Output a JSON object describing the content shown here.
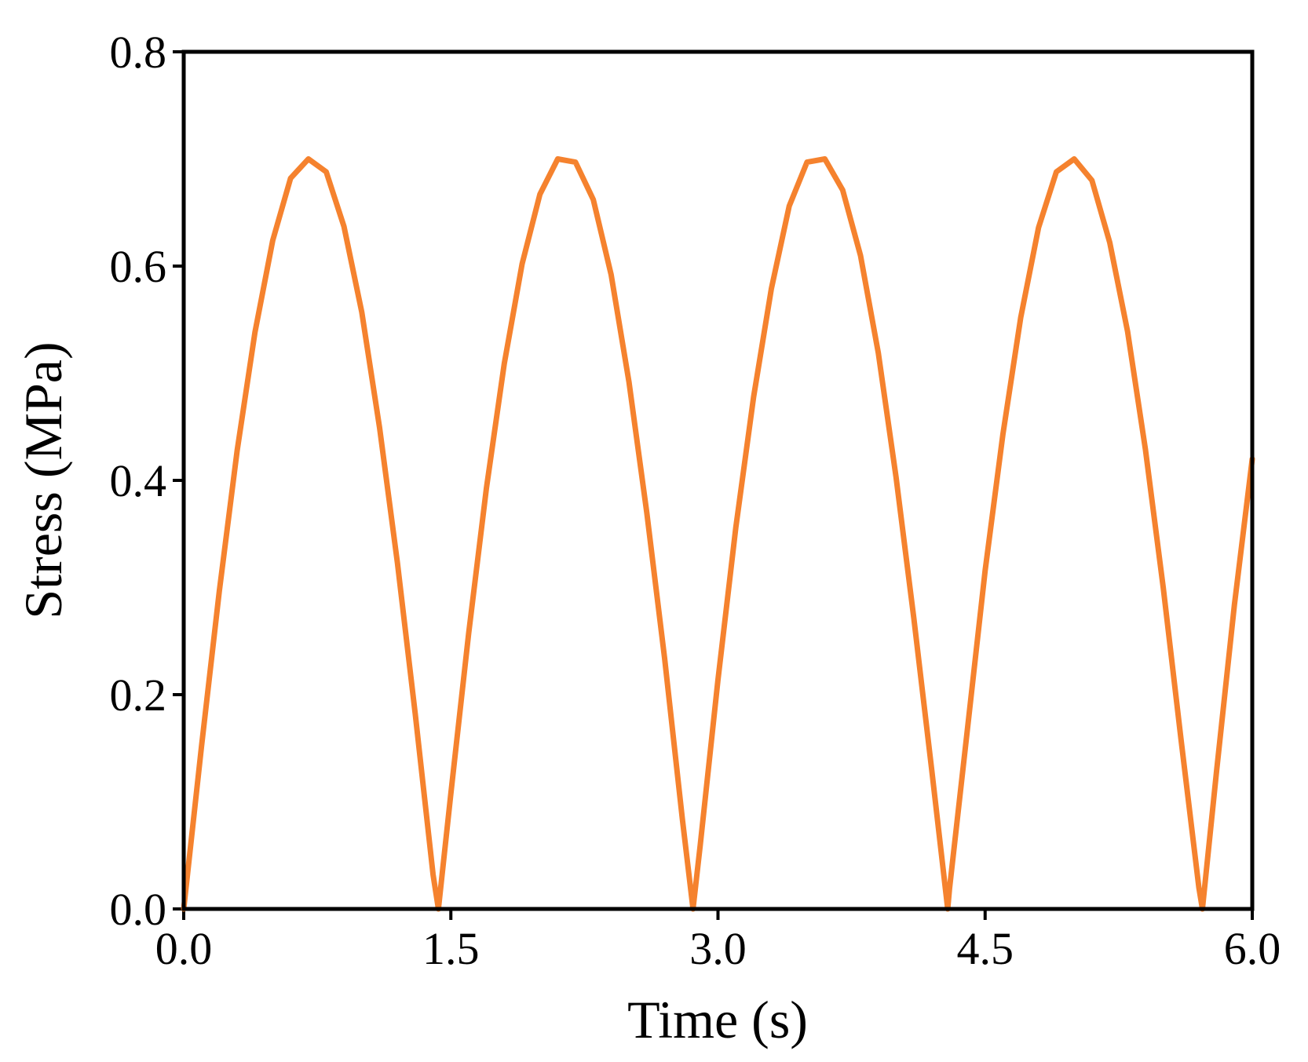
{
  "chart_data": {
    "type": "line",
    "title": "",
    "xlabel": "Time (s)",
    "ylabel": "Stress (MPa)",
    "xlim": [
      0.0,
      6.0
    ],
    "ylim": [
      0.0,
      0.8
    ],
    "xticks": [
      "0.0",
      "1.5",
      "3.0",
      "4.5",
      "6.0"
    ],
    "yticks": [
      "0.0",
      "0.2",
      "0.4",
      "0.6",
      "0.8"
    ],
    "grid": false,
    "legend": "none",
    "series": [
      {
        "color": "#f5822e",
        "x": [
          0.0,
          0.1,
          0.2,
          0.3,
          0.4,
          0.5,
          0.6,
          0.7,
          0.8,
          0.9,
          1.0,
          1.1,
          1.2,
          1.3,
          1.4,
          1.43,
          1.5,
          1.6,
          1.7,
          1.8,
          1.9,
          2.0,
          2.1,
          2.2,
          2.3,
          2.4,
          2.5,
          2.6,
          2.7,
          2.8,
          2.86,
          2.9,
          3.0,
          3.1,
          3.2,
          3.3,
          3.4,
          3.5,
          3.6,
          3.7,
          3.8,
          3.9,
          4.0,
          4.1,
          4.2,
          4.29,
          4.3,
          4.4,
          4.5,
          4.6,
          4.7,
          4.8,
          4.9,
          5.0,
          5.1,
          5.2,
          5.3,
          5.4,
          5.5,
          5.6,
          5.7,
          5.72,
          5.8,
          5.9,
          6.0
        ],
        "y": [
          0.0,
          0.152,
          0.297,
          0.428,
          0.538,
          0.624,
          0.682,
          0.7,
          0.688,
          0.637,
          0.557,
          0.449,
          0.323,
          0.182,
          0.032,
          0.0,
          0.108,
          0.257,
          0.393,
          0.509,
          0.602,
          0.667,
          0.7,
          0.697,
          0.662,
          0.592,
          0.492,
          0.37,
          0.234,
          0.084,
          0.0,
          0.059,
          0.214,
          0.356,
          0.478,
          0.579,
          0.656,
          0.697,
          0.7,
          0.671,
          0.61,
          0.519,
          0.403,
          0.271,
          0.13,
          0.0,
          0.019,
          0.167,
          0.316,
          0.443,
          0.552,
          0.636,
          0.688,
          0.7,
          0.68,
          0.622,
          0.539,
          0.429,
          0.3,
          0.158,
          0.02,
          0.0,
          0.129,
          0.284,
          0.42
        ]
      }
    ]
  }
}
